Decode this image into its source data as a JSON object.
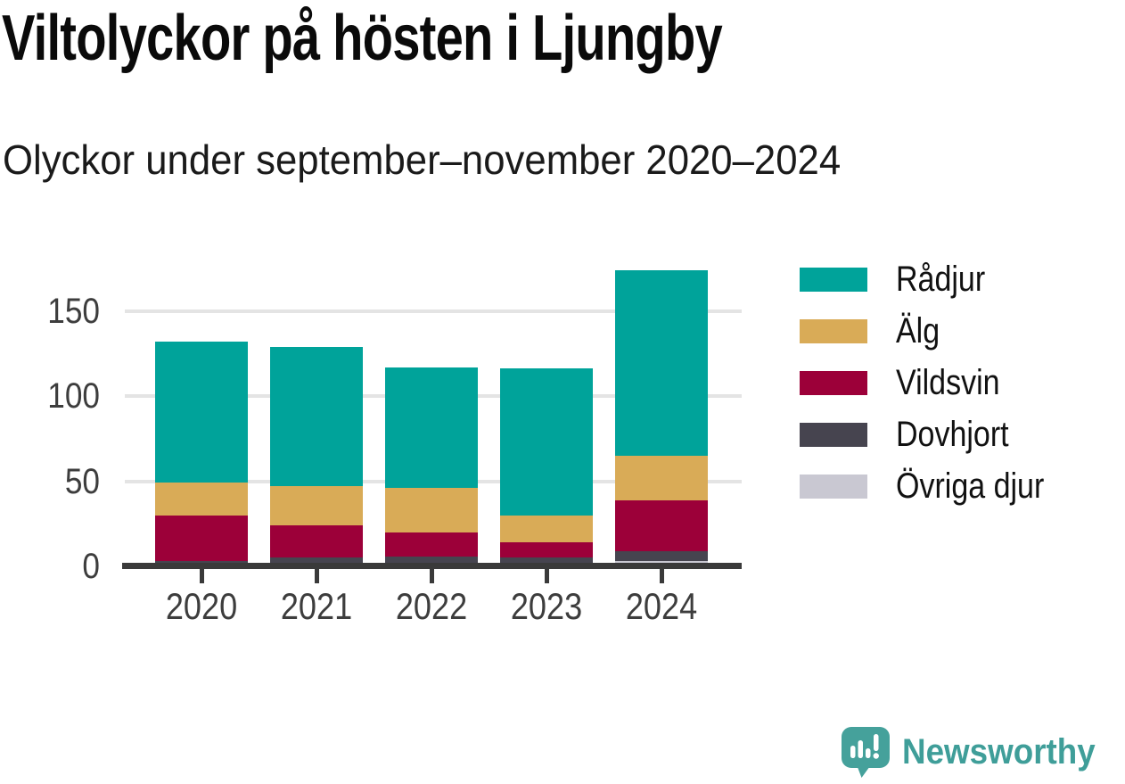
{
  "header": {
    "title": "Viltolyckor på hösten i Ljungby",
    "subtitle": "Olyckor under september–november 2020–2024"
  },
  "chart_data": {
    "type": "bar",
    "stacked": true,
    "title": "Viltolyckor på hösten i Ljungby",
    "subtitle": "Olyckor under september–november 2020–2024",
    "categories": [
      "2020",
      "2021",
      "2022",
      "2023",
      "2024"
    ],
    "series": [
      {
        "name": "Rådjur",
        "color": "#00a39a",
        "values": [
          83,
          82,
          71,
          86,
          109
        ]
      },
      {
        "name": "Älg",
        "color": "#d9ab57",
        "values": [
          19,
          23,
          26,
          16,
          26
        ]
      },
      {
        "name": "Vildsvin",
        "color": "#9c0039",
        "values": [
          27,
          19,
          14,
          9,
          30
        ]
      },
      {
        "name": "Dovhjort",
        "color": "#46444f",
        "values": [
          3,
          5,
          6,
          5,
          6
        ]
      },
      {
        "name": "Övriga djur",
        "color": "#c9c8d2",
        "values": [
          0,
          0,
          0,
          0,
          3
        ]
      }
    ],
    "stack_order_bottom_to_top": [
      "Övriga djur",
      "Dovhjort",
      "Vildsvin",
      "Älg",
      "Rådjur"
    ],
    "yticks": [
      0,
      50,
      100,
      150
    ],
    "ylim": [
      0,
      175
    ],
    "xlabel": "",
    "ylabel": "",
    "grid": "horizontal",
    "legend_position": "right"
  },
  "colors": {
    "axis": "#3a3a3a",
    "gridline": "#e4e4e4",
    "tick_text": "#3d3d3d",
    "title_text": "#0a0a0a",
    "brand_teal": "#3f9e99"
  },
  "footer": {
    "brand": "Newsworthy"
  }
}
